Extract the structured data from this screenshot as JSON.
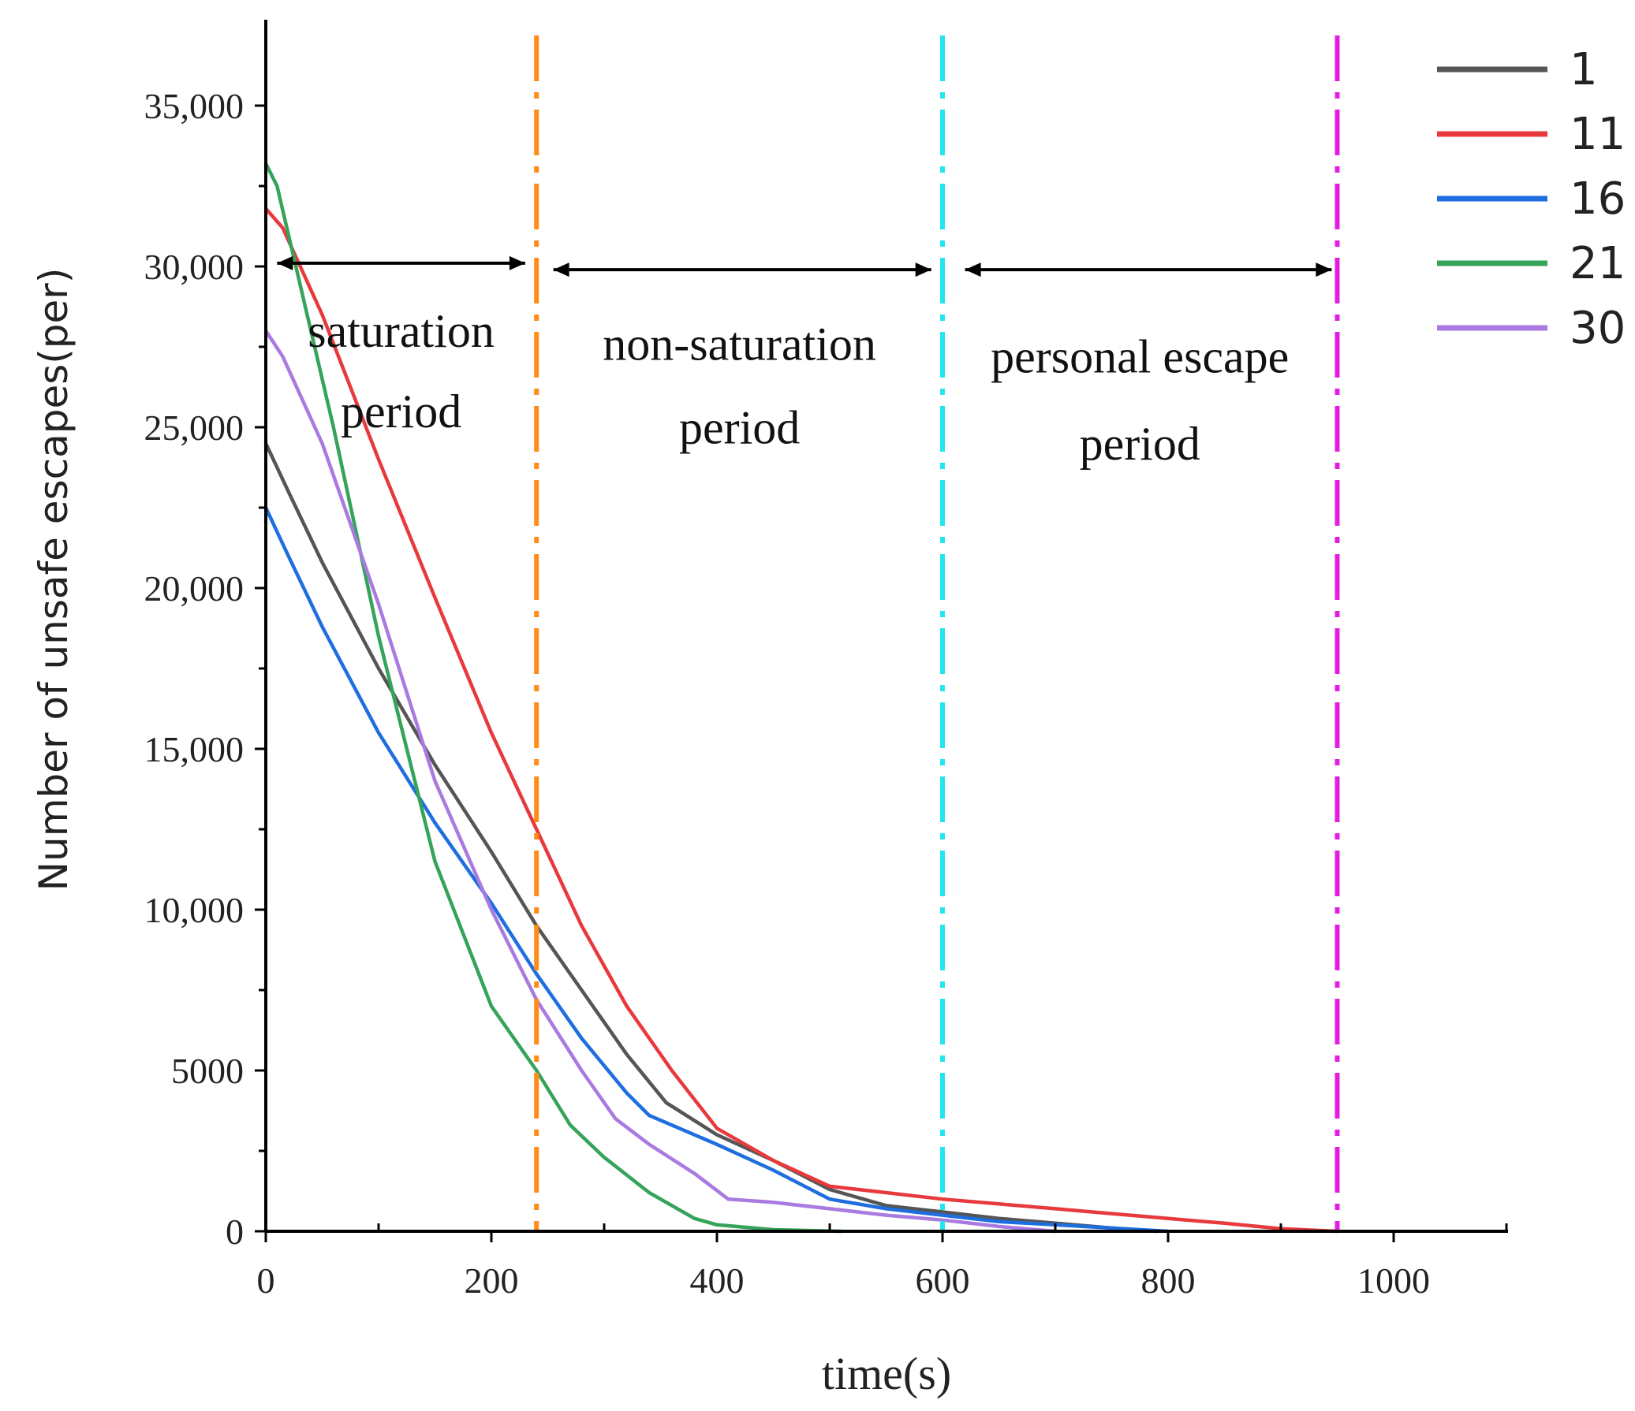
{
  "chart_data": {
    "type": "line",
    "title": "",
    "xlabel": "time(s)",
    "ylabel": "Number of unsafe escapes(per)",
    "xlim": [
      0,
      1100
    ],
    "ylim": [
      0,
      37000
    ],
    "xticks": [
      0,
      200,
      400,
      600,
      800,
      1000
    ],
    "xtick_labels": [
      "0",
      "200",
      "400",
      "600",
      "800",
      "1000"
    ],
    "yticks": [
      0,
      5000,
      10000,
      15000,
      20000,
      25000,
      30000,
      35000
    ],
    "ytick_labels": [
      "0",
      "5000",
      "10,000",
      "15,000",
      "20,000",
      "25,000",
      "30,000",
      "35,000"
    ],
    "grid": false,
    "legend_position": "top-right",
    "series": [
      {
        "name": "1",
        "color": "#555555",
        "x": [
          0,
          20,
          50,
          100,
          150,
          200,
          240,
          280,
          320,
          355,
          400,
          450,
          500,
          550,
          600,
          650,
          700,
          750,
          790
        ],
        "y": [
          24500,
          23000,
          20800,
          17500,
          14500,
          11800,
          9500,
          7500,
          5500,
          4000,
          3000,
          2200,
          1300,
          800,
          600,
          400,
          250,
          100,
          0
        ]
      },
      {
        "name": "11",
        "color": "#e8393c",
        "x": [
          0,
          15,
          50,
          100,
          150,
          200,
          240,
          280,
          320,
          360,
          400,
          450,
          500,
          550,
          600,
          650,
          700,
          750,
          800,
          850,
          900,
          950
        ],
        "y": [
          31800,
          31200,
          28500,
          24000,
          19700,
          15500,
          12500,
          9500,
          7000,
          5000,
          3200,
          2200,
          1400,
          1200,
          1000,
          850,
          700,
          550,
          400,
          250,
          80,
          0
        ]
      },
      {
        "name": "16",
        "color": "#1f6ee0",
        "x": [
          0,
          20,
          50,
          100,
          150,
          200,
          240,
          280,
          320,
          340,
          400,
          450,
          500,
          550,
          600,
          650,
          700,
          750,
          800
        ],
        "y": [
          22500,
          21000,
          18800,
          15500,
          12700,
          10200,
          8000,
          6000,
          4300,
          3600,
          2700,
          1900,
          1000,
          700,
          500,
          300,
          200,
          100,
          0
        ]
      },
      {
        "name": "21",
        "color": "#36a35a",
        "x": [
          0,
          10,
          30,
          60,
          100,
          150,
          200,
          240,
          270,
          300,
          340,
          380,
          400,
          450,
          510
        ],
        "y": [
          33200,
          32500,
          29500,
          25000,
          18500,
          11500,
          7000,
          5000,
          3300,
          2300,
          1200,
          400,
          200,
          50,
          0
        ]
      },
      {
        "name": "30",
        "color": "#a97ae0",
        "x": [
          0,
          15,
          50,
          100,
          150,
          200,
          240,
          280,
          310,
          340,
          380,
          410,
          450,
          500,
          550,
          600,
          650,
          700
        ],
        "y": [
          28000,
          27200,
          24500,
          19500,
          14000,
          10000,
          7200,
          5000,
          3500,
          2700,
          1800,
          1000,
          900,
          700,
          500,
          350,
          150,
          0
        ]
      }
    ],
    "vertical_lines": [
      {
        "x": 240,
        "color": "#ff8c1a"
      },
      {
        "x": 600,
        "color": "#22e5ef"
      },
      {
        "x": 950,
        "color": "#e11fe1"
      }
    ],
    "period_arrows": [
      {
        "x1": 10,
        "x2": 230,
        "y": 30100
      },
      {
        "x1": 255,
        "x2": 590,
        "y": 29900
      },
      {
        "x1": 620,
        "x2": 945,
        "y": 29900
      }
    ],
    "annotations": [
      {
        "lines": [
          "saturation",
          "period"
        ],
        "x": 120,
        "y": [
          27500,
          25000
        ]
      },
      {
        "lines": [
          "non-saturation",
          "period"
        ],
        "x": 420,
        "y": [
          27100,
          24500
        ]
      },
      {
        "lines": [
          "personal escape",
          "period"
        ],
        "x": 775,
        "y": [
          26700,
          24000
        ]
      }
    ]
  }
}
